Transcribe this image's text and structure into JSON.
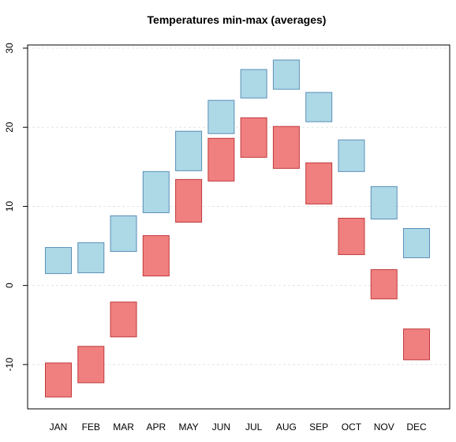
{
  "chart_data": {
    "type": "floating-bar",
    "title": "Temperatures min-max (averages)",
    "xlabel": "",
    "ylabel": "",
    "categories": [
      "JAN",
      "FEB",
      "MAR",
      "APR",
      "MAY",
      "JUN",
      "JUL",
      "AUG",
      "SEP",
      "OCT",
      "NOV",
      "DEC"
    ],
    "ylim": [
      -15.6,
      30.4
    ],
    "yticks": [
      -10,
      0,
      10,
      20,
      30
    ],
    "grid": "horizontal dotted",
    "series": [
      {
        "color": "#add8e6",
        "stroke": "#5a8fb8",
        "low": [
          1.5,
          1.6,
          4.3,
          9.2,
          14.5,
          19.2,
          23.7,
          24.8,
          20.7,
          14.4,
          8.4,
          3.5
        ],
        "high": [
          4.8,
          5.4,
          8.8,
          14.4,
          19.5,
          23.4,
          27.3,
          28.5,
          24.4,
          18.4,
          12.5,
          7.2
        ]
      },
      {
        "color": "#f08080",
        "stroke": "#c0393b",
        "low": [
          -14.1,
          -12.3,
          -6.5,
          1.2,
          8.0,
          13.2,
          16.2,
          14.8,
          10.3,
          3.9,
          -1.7,
          -9.4
        ],
        "high": [
          -9.8,
          -7.7,
          -2.1,
          6.3,
          13.4,
          18.6,
          21.2,
          20.1,
          15.5,
          8.5,
          2.0,
          -5.5
        ]
      }
    ]
  }
}
